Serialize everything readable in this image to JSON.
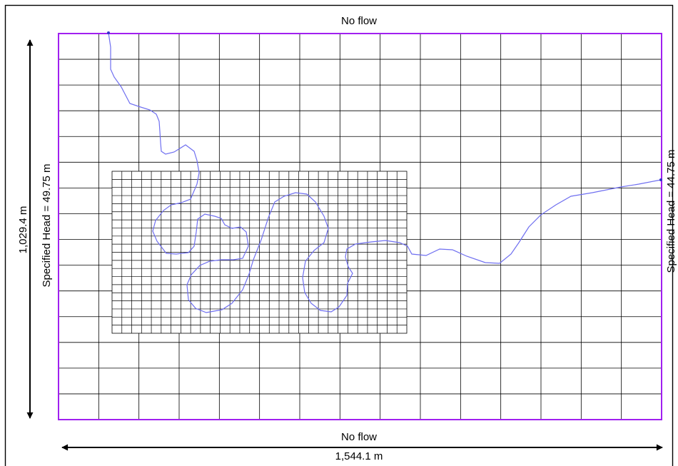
{
  "labels": {
    "top_boundary": "No flow",
    "bottom_boundary": "No flow",
    "left_boundary": "Specified Head = 49.75 m",
    "right_boundary": "Specified Head = 44.75 m",
    "width_dimension": "1,544.1 m",
    "height_dimension": "1,029.4 m"
  },
  "colors": {
    "domain_border": "#a020f0",
    "grid_lines": "#000000",
    "river": "#6f6ff0",
    "frame": "#000000"
  },
  "grid": {
    "coarse_columns": 15,
    "coarse_rows": 15,
    "refined_columns": 30,
    "refined_rows": 20
  }
}
